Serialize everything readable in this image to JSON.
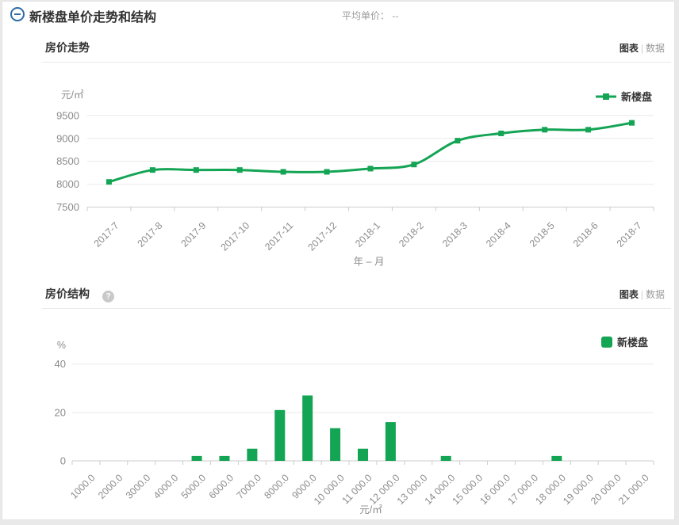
{
  "header": {
    "title": "新楼盘单价走势和结构",
    "average_label": "平均单价：",
    "average_value": "--"
  },
  "sections": {
    "trend": {
      "title": "房价走势",
      "view_toggle": {
        "chart": "图表",
        "separator": "|",
        "data": "数据"
      }
    },
    "structure": {
      "title": "房价结构",
      "help_glyph": "?",
      "view_toggle": {
        "chart": "图表",
        "separator": "|",
        "data": "数据"
      }
    }
  },
  "colors": {
    "accent_green": "#13a454",
    "icon_blue": "#2f6ca8",
    "axis_text": "#8c8c8c",
    "grid_line": "#e9e9e9",
    "axis_line": "#cccccc",
    "title_text": "#333333"
  },
  "chart_data": [
    {
      "type": "line",
      "title": "房价走势",
      "x": [
        "2017-7",
        "2017-8",
        "2017-9",
        "2017-10",
        "2017-11",
        "2017-12",
        "2018-1",
        "2018-2",
        "2018-3",
        "2018-4",
        "2018-5",
        "2018-6",
        "2018-7"
      ],
      "series": [
        {
          "name": "新楼盘",
          "values": [
            8050,
            8310,
            8310,
            8310,
            8270,
            8270,
            8340,
            8430,
            8950,
            9110,
            9190,
            9190,
            9340
          ]
        }
      ],
      "xlabel": "年 – 月",
      "ylabel": "元/㎡",
      "ylim": [
        7500,
        9500
      ],
      "yticks": [
        7500,
        8000,
        8500,
        9000,
        9500
      ],
      "grid": true,
      "smooth": true,
      "marker": "square",
      "legend_position": "top-right"
    },
    {
      "type": "bar",
      "title": "房价结构",
      "categories": [
        "1000.0",
        "2000.0",
        "3000.0",
        "4000.0",
        "5000.0",
        "6000.0",
        "7000.0",
        "8000.0",
        "9000.0",
        "10 000.0",
        "11 000.0",
        "12 000.0",
        "13 000.0",
        "14 000.0",
        "15 000.0",
        "16 000.0",
        "17 000.0",
        "18 000.0",
        "19 000.0",
        "20 000.0",
        "21 000.0"
      ],
      "series": [
        {
          "name": "新楼盘",
          "values": [
            0,
            0,
            0,
            0,
            2,
            2,
            5,
            21,
            27,
            13.5,
            5,
            16,
            0,
            2,
            0,
            0,
            0,
            2,
            0,
            0,
            0
          ]
        }
      ],
      "xlabel": "元/㎡",
      "ylabel": "%",
      "ylim": [
        0,
        40
      ],
      "yticks": [
        0,
        20,
        40
      ],
      "grid": true,
      "legend_position": "top-right"
    }
  ]
}
